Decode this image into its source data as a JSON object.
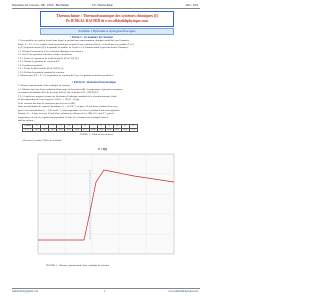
{
  "header": {
    "left": "Préparation aux Concours - MP - CPGE - Bsm Meknès",
    "center": "TD : Thermochimie",
    "right": "2022 - 2023"
  },
  "title": {
    "main": "Thermochimie : Thermodynamique des systèmes chimiques (I)",
    "author": "Pr.JENKAL RACHID ✉ www.elkhalidiphysique.com"
  },
  "problem": "Problème 1 Hydrazine et hydrogène fluorogène",
  "part1": {
    "title": "• Partie I : Grandeurs de réaction",
    "lines": [
      "1. On considère un système fermé dans lequel se produit une transformation chimique modélisée par l'équation",
      "bilan : 0 = Σ νᵢ Aᵢ. Le système étant caractérisé par un profil à une fonction d'état G, et décrit par ses variables T et P,",
      "n₁(T) (respectivement nᵢ(T)) la quantité de matière de l'espèce Aᵢ à l'instant initial (respectivement à l'instant t).",
      "1.1. Définir l'avancement ξ de la réaction chimique à un instant t.",
      "1.2. Soit Y une grandeur extensive relative au système.",
      "1.2.1. Donner l'expression de la différentielle dY de Y(T,P,ξ).",
      "1.2.2. Définir la grandeur de réaction ΔᵣY.",
      "1.3. Grandeurs standard.",
      "1.3.1. Écrire la différentielle dZ de Z(T,P,ξ,n).",
      "1.3.2. Définir la grandeur standard de réaction.",
      "2. Montrer que ΔᵣY = Σ νᵢ Yᵢ la grandeur de réaction ΔᵣY avec les grandeurs molaires partielles."
    ]
  },
  "part2": {
    "title": "• Partie II : Réaction Enzymatique",
    "lines": [
      "1. Mesure expérimentale d'une enthalpie de réaction",
      "2.1. Montrer que lors d'une évolution élémentaire de la réaction dH, à température et pression constantes,",
      "la variation d'enthalpie dH a de la forme ΔᵣH dξ. On en déduit ΔᵣH = (∂H/∂ξ)T,P.",
      "2.2. L'expérience proposée permet de déterminer l'enthalpie standard de la réaction suivante (étude",
      "de décomposition de l'eau oxygénée 2H₂O₂ → 2H₂O + O₂(g).",
      "Cette réaction fait donc de catalyseur par des ions Fe(III).",
      "Dans un calorimètre de capacité thermique Cₖ = 30 J.K⁻¹, on place 50 mL d'une solution d'eau oxy-",
      "génée à la concentration C₀ = 0,92 mol.L⁻¹ et la température est relevée pendant 4 min sous agitation.",
      "Ensuite, à t = 5 min, on verse 50 mL d'une solution de chlorure de fer (III) à 0,1 mol.L⁻¹, puis la",
      "température est relevée régulièrement pendant 10 min. Les résultats sont consignés dans le",
      "tableau suivant :"
    ]
  },
  "table": {
    "rows": [
      [
        "t (min)",
        "0",
        "1",
        "2",
        "3",
        "4",
        "5",
        "6",
        "7",
        "8",
        "9",
        "10",
        "11",
        "12"
      ],
      [
        "θ (°C)",
        "18,2",
        "18,2",
        "18,2",
        "18,2",
        "18,2",
        "24,4",
        "27,6",
        "28,8",
        "28,6",
        "28,4",
        "28,2",
        "28,0",
        "27,8"
      ]
    ],
    "caption": "TABLE 1 – Tableau des mesures"
  },
  "note": "- On trace la courbe T (K) en en déduit :",
  "figure": {
    "label": "T = f(t)",
    "caption": "FIGURE 1 – Mesure expérimentale d'une enthalpie de réaction"
  },
  "footer": {
    "left": "jenkalrachid@gmail.com",
    "center": "1",
    "right": "www.elkhalidiphysique.com"
  }
}
